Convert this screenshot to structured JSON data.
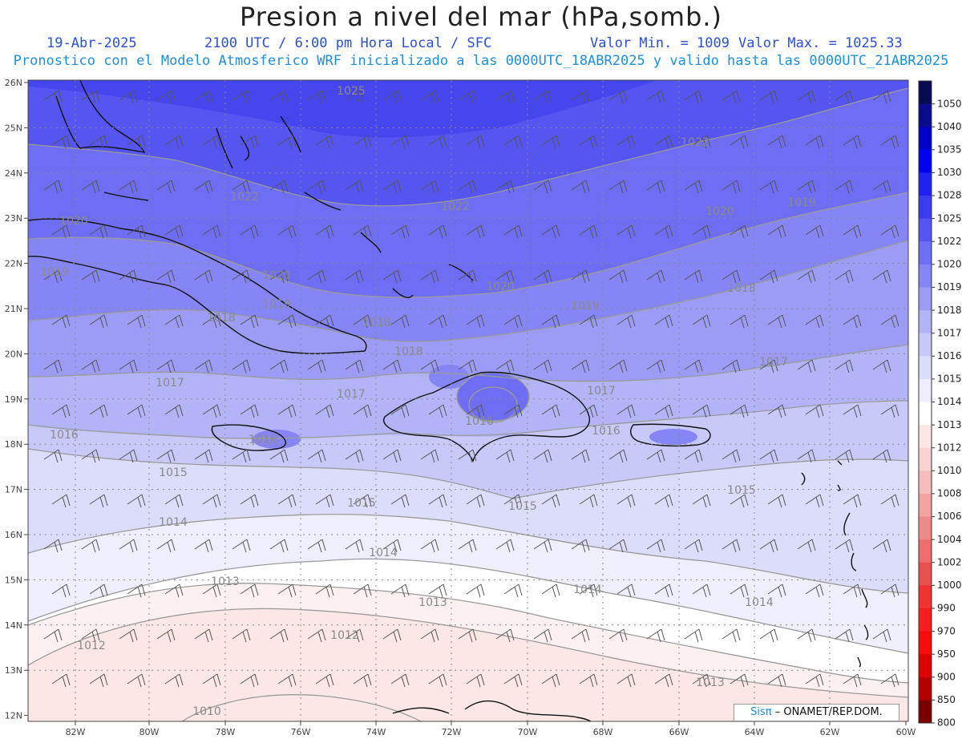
{
  "title": "Presion a nivel del mar (hPa,somb.)",
  "header": {
    "date": "19-Abr-2025",
    "time": "2100 UTC / 6:00 pm Hora Local / SFC",
    "min_label": "Valor Min. = 1009",
    "max_label": "Valor Max. = 1025.33",
    "model_line": "Pronostico con el Modelo Atmosferico WRF inicializado a las 0000UTC_18ABR2025 y valido hasta las  0000UTC_21ABR2025"
  },
  "map": {
    "lat_labels": [
      "26N",
      "25N",
      "24N",
      "23N",
      "22N",
      "21N",
      "20N",
      "19N",
      "18N",
      "17N",
      "16N",
      "15N",
      "14N",
      "13N",
      "12N"
    ],
    "lon_labels": [
      "82W",
      "80W",
      "78W",
      "76W",
      "74W",
      "72W",
      "70W",
      "68W",
      "66W",
      "64W",
      "62W",
      "60W"
    ],
    "isobar_labels": [
      {
        "text": "1025"
      },
      {
        "text": "1022"
      },
      {
        "text": "1022"
      },
      {
        "text": "1022"
      },
      {
        "text": "1020"
      },
      {
        "text": "1020"
      },
      {
        "text": "1020"
      },
      {
        "text": "1020"
      },
      {
        "text": "1019"
      },
      {
        "text": "1019"
      },
      {
        "text": "1019"
      },
      {
        "text": "1019"
      },
      {
        "text": "1018"
      },
      {
        "text": "1018"
      },
      {
        "text": "1018"
      },
      {
        "text": "1018"
      },
      {
        "text": "1017"
      },
      {
        "text": "1017"
      },
      {
        "text": "1017"
      },
      {
        "text": "1017"
      },
      {
        "text": "1016"
      },
      {
        "text": "1016"
      },
      {
        "text": "1016"
      },
      {
        "text": "1016"
      },
      {
        "text": "1015"
      },
      {
        "text": "1015"
      },
      {
        "text": "1015"
      },
      {
        "text": "1015"
      },
      {
        "text": "1014"
      },
      {
        "text": "1014"
      },
      {
        "text": "1014"
      },
      {
        "text": "1014"
      },
      {
        "text": "1013"
      },
      {
        "text": "1013"
      },
      {
        "text": "1013"
      },
      {
        "text": "1012"
      },
      {
        "text": "1012"
      },
      {
        "text": "1010"
      }
    ]
  },
  "colorbar": {
    "levels": [
      {
        "label": "1050",
        "color": "#0a0a50"
      },
      {
        "label": "1040",
        "color": "#0a0a8c"
      },
      {
        "label": "1035",
        "color": "#0000c8"
      },
      {
        "label": "1030",
        "color": "#0000f5"
      },
      {
        "label": "1028",
        "color": "#2222f0"
      },
      {
        "label": "1025",
        "color": "#3c3cee"
      },
      {
        "label": "1022",
        "color": "#5555f2"
      },
      {
        "label": "1020",
        "color": "#6e6ef4"
      },
      {
        "label": "1019",
        "color": "#8585f5"
      },
      {
        "label": "1018",
        "color": "#9c9cf6"
      },
      {
        "label": "1017",
        "color": "#b3b3f8"
      },
      {
        "label": "1016",
        "color": "#c8c8f9"
      },
      {
        "label": "1015",
        "color": "#dcdcfb"
      },
      {
        "label": "1014",
        "color": "#eeeefd"
      },
      {
        "label": "1013",
        "color": "#ffffff"
      },
      {
        "label": "1012",
        "color": "#fde6e6"
      },
      {
        "label": "1010",
        "color": "#fad2d2"
      },
      {
        "label": "1008",
        "color": "#f7bcbc"
      },
      {
        "label": "1006",
        "color": "#f4a3a3"
      },
      {
        "label": "1004",
        "color": "#f08a8a"
      },
      {
        "label": "1002",
        "color": "#ec6e6e"
      },
      {
        "label": "1000",
        "color": "#e85050"
      },
      {
        "label": "990",
        "color": "#f03232"
      },
      {
        "label": "970",
        "color": "#f51e1e"
      },
      {
        "label": "950",
        "color": "#fa0a0a"
      },
      {
        "label": "900",
        "color": "#e00000"
      },
      {
        "label": "850",
        "color": "#b40000"
      },
      {
        "label": "800",
        "color": "#7a0000"
      }
    ]
  },
  "credit": {
    "brand": "Sisπ",
    "org": "– ONAMET/REP.DOM."
  }
}
